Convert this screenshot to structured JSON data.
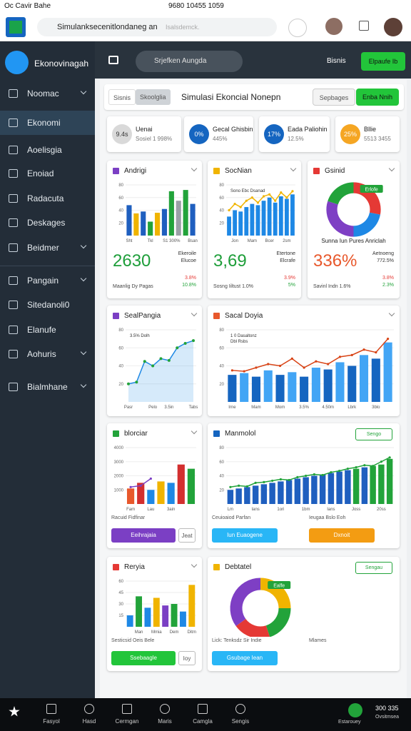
{
  "status_bar": {
    "left": "Oc Cavir Bahe",
    "center": "9680 10455 1059"
  },
  "browser": {
    "url": "Simulanksecenitlondaneg an",
    "url_hint": "Isalsdemck."
  },
  "sidebar": {
    "brand": "Ekonovinagah",
    "active": 1,
    "items": [
      "Noomac",
      "Ekonomi",
      "Aoelisgia",
      "Enoiad",
      "Radacuta",
      "Deskages",
      "Beidmer",
      "Pangain",
      "Sitedanoli0",
      "Elanufe",
      "Aohuris",
      "Bialmhane"
    ]
  },
  "topbar": {
    "search": "Srjefken Aungda",
    "user": "Bisnis",
    "button": "Elpaufe Ib"
  },
  "header": {
    "tabs": [
      "Sisnis",
      "Skoolglia"
    ],
    "title": "Simulasi Ekoncial Nonepn",
    "buttons": [
      "Sepbages",
      "Enba Nnih"
    ]
  },
  "kpis": [
    {
      "badge": "9.4s",
      "color": "#d9d9d9",
      "label": "Uenai",
      "sub": "Sosiel 1 998%"
    },
    {
      "badge": "0%",
      "color": "#1565c0",
      "label": "Gecal Ghisbin",
      "sub": "445%"
    },
    {
      "badge": "17%",
      "color": "#1565c0",
      "label": "Eada Paliohin",
      "sub": "12.5%"
    },
    {
      "badge": "25%",
      "color": "#f5a623",
      "label": "Bllie",
      "sub": "5513 3455"
    }
  ],
  "cards": [
    {
      "title": "Andrigi",
      "icon": "#7b3fc4",
      "chart": {
        "type": "bar",
        "values": [
          48,
          35,
          38,
          22,
          36,
          42,
          70,
          55,
          72,
          50
        ],
        "colors": [
          "#1f5fbf",
          "#f0b400",
          "#1f5fbf",
          "#22a33a",
          "#f0b400",
          "#1f5fbf",
          "#22a33a",
          "#9aa0a6",
          "#22a33a",
          "#1f5fbf"
        ],
        "categories": [
          "Sht",
          null,
          null,
          "Tkl",
          null,
          null,
          "S1 300%",
          null,
          null,
          "Bsan"
        ],
        "ylim": [
          0,
          80
        ],
        "yticks": [
          20,
          40,
          60,
          80
        ]
      },
      "big": "2630",
      "big_color": "#1e9e3a",
      "caption": "Maanlig Dy Pagas",
      "side": [
        "Ekeroile",
        "Elucoe",
        "3.8%",
        "10.8%"
      ]
    },
    {
      "title": "SocNian",
      "icon": "#f0b400",
      "chart": {
        "type": "bar",
        "values": [
          30,
          40,
          38,
          45,
          50,
          48,
          55,
          60,
          52,
          62,
          58,
          65
        ],
        "color": "#1e88e5",
        "line": {
          "values": [
            40,
            50,
            45,
            55,
            60,
            52,
            62,
            65,
            55,
            68,
            60,
            70
          ],
          "color": "#f0b400"
        },
        "legend": [
          "Sono Ebc Dsanad"
        ],
        "categories": [
          null,
          "Jon",
          null,
          null,
          "Mam",
          null,
          null,
          "Bcer",
          null,
          null,
          "2sm",
          null
        ],
        "ylim": [
          0,
          80
        ],
        "yticks": [
          20,
          40,
          60,
          80
        ]
      },
      "big": "3,69",
      "big_color": "#1e9e3a",
      "caption": "Sosng Iiltust 1.0%",
      "side": [
        "Etertone",
        "Elcrafe",
        "3.9%",
        "5%"
      ]
    },
    {
      "title": "Gsinid",
      "icon": "#e53935",
      "chart": {
        "type": "donut",
        "values": [
          28,
          22,
          30,
          20
        ],
        "colors": [
          "#e53935",
          "#1e88e5",
          "#7e3fc4",
          "#22a33a"
        ],
        "label": "Erlofe",
        "caption": "Sunna Iun Pures Anriclah"
      },
      "big": "336%",
      "big_color": "#e8582c",
      "caption": "Savinl Indn 1.6%",
      "side": [
        "Aetnoeng",
        "772.5%",
        "3.8%",
        "2.3%"
      ]
    },
    {
      "title": "SealPangia",
      "icon": "#7b3fc4",
      "chart": {
        "type": "area",
        "values": [
          20,
          22,
          45,
          40,
          48,
          46,
          60,
          65,
          68
        ],
        "color": "#1e88e5",
        "marker": "#22a33a",
        "legend": [
          "3.5% Dolh"
        ],
        "categories": [
          "Pasr",
          null,
          null,
          "Pelo",
          null,
          "3.5in",
          null,
          null,
          "Tabs"
        ],
        "ylim": [
          0,
          80
        ],
        "yticks": [
          20,
          40,
          60,
          80
        ]
      }
    },
    {
      "title": "Sacal Doyia",
      "icon": "#e8582c",
      "chart": {
        "type": "bar",
        "values": [
          30,
          32,
          28,
          35,
          30,
          33,
          28,
          38,
          36,
          44,
          40,
          52,
          48,
          66
        ],
        "colors": [
          "#1565c0",
          "#42a5f5",
          "#1565c0",
          "#42a5f5",
          "#1565c0",
          "#42a5f5",
          "#1565c0",
          "#42a5f5",
          "#1565c0",
          "#42a5f5",
          "#1565c0",
          "#42a5f5",
          "#1565c0",
          "#42a5f5"
        ],
        "line": {
          "values": [
            35,
            34,
            38,
            42,
            40,
            48,
            38,
            45,
            42,
            50,
            52,
            58,
            55,
            70
          ],
          "color": "#d84315"
        },
        "legend": [
          "1 0 Dasaltonz",
          "Dbl Rsbs"
        ],
        "categories": [
          "Irne",
          null,
          "Mam",
          null,
          "Mom",
          null,
          "3.5%",
          null,
          "4.50m",
          null,
          "Lbrk",
          null,
          "3blo",
          null
        ],
        "ylim": [
          0,
          80
        ],
        "yticks": [
          20,
          40,
          60,
          80
        ]
      }
    },
    {
      "title": "blorciar",
      "icon": "#22a33a",
      "chart": {
        "type": "bar",
        "values": [
          1100,
          1500,
          1000,
          1600,
          1500,
          2800,
          2500
        ],
        "colors": [
          "#e8582c",
          "#d32f2f",
          "#1e88e5",
          "#f0b400",
          "#1e88e5",
          "#d32f2f",
          "#22a33a"
        ],
        "line": {
          "values": [
            1200,
            1300,
            1800,
            null,
            null,
            null,
            null
          ],
          "color": "#7b3fc4"
        },
        "categories": [
          "Fam",
          null,
          "Lau",
          null,
          "3ain",
          null,
          null
        ],
        "ylim": [
          0,
          4000
        ],
        "yticks": [
          1000,
          2000,
          3000,
          4000
        ]
      },
      "notes": [
        "Racuid Fidfinar"
      ],
      "buttons": [
        {
          "label": "Eeihrajaia",
          "color": "#7b3fc4"
        },
        {
          "label": "Jeat",
          "color": "#ffffff"
        }
      ]
    },
    {
      "title": "Manmolol",
      "icon": "#1565c0",
      "tag": "Sengo",
      "chart": {
        "type": "bar",
        "values": [
          20,
          22,
          24,
          26,
          28,
          30,
          32,
          34,
          36,
          38,
          40,
          42,
          44,
          46,
          48,
          50,
          52,
          54,
          56,
          64
        ],
        "colors": [
          "#1f5fbf",
          "#1f5fbf",
          "#1f5fbf",
          "#1f5fbf",
          "#1f5fbf",
          "#1f5fbf",
          "#1f5fbf",
          "#1f5fbf",
          "#1f5fbf",
          "#1f5fbf",
          "#1f5fbf",
          "#1f5fbf",
          "#1f5fbf",
          "#1f5fbf",
          "#1f5fbf",
          "#22a33a",
          "#1f5fbf",
          "#22a33a",
          "#22a33a",
          "#22a33a"
        ],
        "line": {
          "values": [
            24,
            26,
            25,
            30,
            31,
            33,
            35,
            34,
            38,
            40,
            42,
            41,
            45,
            47,
            50,
            52,
            55,
            54,
            60,
            66
          ],
          "color": "#22a33a"
        },
        "categories": [
          "Lm",
          null,
          null,
          "Ians",
          null,
          null,
          "1ori",
          null,
          null,
          "1bm",
          null,
          null,
          "Ians",
          null,
          null,
          "Joss",
          null,
          null,
          "20ss",
          null
        ],
        "ylim": [
          0,
          80
        ],
        "yticks": [
          20,
          40,
          60,
          80
        ]
      },
      "notes": [
        "Ceuioaiod Parfan",
        "Ieugaa Bslo Eoh"
      ],
      "buttons": [
        {
          "label": "Iun Euaogene",
          "color": "#29b6f6"
        },
        {
          "label": "Dxnoit",
          "color": "#f39c12"
        }
      ]
    },
    {
      "title": "Reryia",
      "icon": "#e53935",
      "chart": {
        "type": "bar",
        "values": [
          15,
          40,
          25,
          38,
          28,
          30,
          20,
          55
        ],
        "colors": [
          "#1e88e5",
          "#22a33a",
          "#1e88e5",
          "#f0b400",
          "#7b3fc4",
          "#22a33a",
          "#1e88e5",
          "#f0b400"
        ],
        "categories": [
          null,
          "Man",
          null,
          "Mmia",
          null,
          "Dem",
          null,
          "Ditm"
        ],
        "ylim": [
          0,
          60
        ],
        "yticks": [
          15,
          30,
          45,
          60
        ]
      },
      "notes": [
        "Sesticsid Oeis Bele"
      ],
      "buttons": [
        {
          "label": "Ssebaagle",
          "color": "#22c53a"
        },
        {
          "label": "Ioy",
          "color": "#ffffff"
        }
      ]
    },
    {
      "title": "Debtatel",
      "icon": "#f0b400",
      "tag": "Sengau",
      "chart": {
        "type": "donut",
        "values": [
          25,
          20,
          20,
          35
        ],
        "colors": [
          "#f0b400",
          "#22a33a",
          "#e53935",
          "#7e3fc4"
        ],
        "label": "Ealfe"
      },
      "notes": [
        "Lick: Tenksdz Sir Indie",
        "Mlames"
      ],
      "buttons": [
        {
          "label": "Gsubage Iean",
          "color": "#29b6f6"
        }
      ]
    }
  ],
  "bottom_nav": {
    "items": [
      "Fasyol",
      "Hasd",
      "Cermgan",
      "Maris",
      "Camgla",
      "Sengis"
    ],
    "right": [
      "300 335",
      "Estarouey",
      "Ovsitmsea"
    ]
  }
}
